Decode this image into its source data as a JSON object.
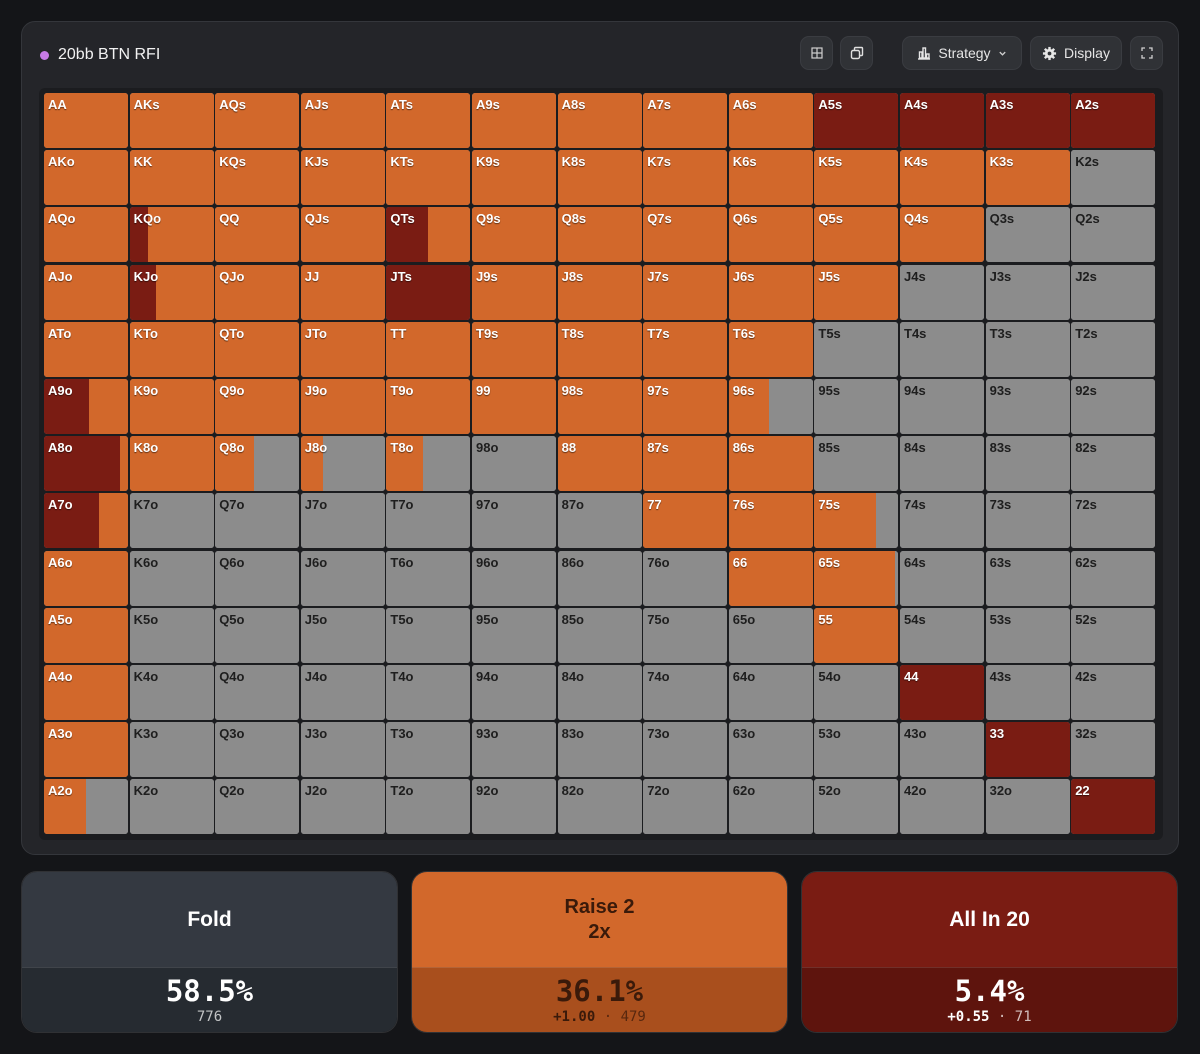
{
  "header": {
    "title": "20bb BTN RFI",
    "strategy_label": "Strategy",
    "display_label": "Display",
    "dot_color": "#c77be6"
  },
  "colors": {
    "fold": "#8c8c8c",
    "raise": "#d2682b",
    "allin": "#7a1c13"
  },
  "hands": [
    [
      "AA",
      "AKs",
      "AQs",
      "AJs",
      "ATs",
      "A9s",
      "A8s",
      "A7s",
      "A6s",
      "A5s",
      "A4s",
      "A3s",
      "A2s"
    ],
    [
      "AKo",
      "KK",
      "KQs",
      "KJs",
      "KTs",
      "K9s",
      "K8s",
      "K7s",
      "K6s",
      "K5s",
      "K4s",
      "K3s",
      "K2s"
    ],
    [
      "AQo",
      "KQo",
      "QQ",
      "QJs",
      "QTs",
      "Q9s",
      "Q8s",
      "Q7s",
      "Q6s",
      "Q5s",
      "Q4s",
      "Q3s",
      "Q2s"
    ],
    [
      "AJo",
      "KJo",
      "QJo",
      "JJ",
      "JTs",
      "J9s",
      "J8s",
      "J7s",
      "J6s",
      "J5s",
      "J4s",
      "J3s",
      "J2s"
    ],
    [
      "ATo",
      "KTo",
      "QTo",
      "JTo",
      "TT",
      "T9s",
      "T8s",
      "T7s",
      "T6s",
      "T5s",
      "T4s",
      "T3s",
      "T2s"
    ],
    [
      "A9o",
      "K9o",
      "Q9o",
      "J9o",
      "T9o",
      "99",
      "98s",
      "97s",
      "96s",
      "95s",
      "94s",
      "93s",
      "92s"
    ],
    [
      "A8o",
      "K8o",
      "Q8o",
      "J8o",
      "T8o",
      "98o",
      "88",
      "87s",
      "86s",
      "85s",
      "84s",
      "83s",
      "82s"
    ],
    [
      "A7o",
      "K7o",
      "Q7o",
      "J7o",
      "T7o",
      "97o",
      "87o",
      "77",
      "76s",
      "75s",
      "74s",
      "73s",
      "72s"
    ],
    [
      "A6o",
      "K6o",
      "Q6o",
      "J6o",
      "T6o",
      "96o",
      "86o",
      "76o",
      "66",
      "65s",
      "64s",
      "63s",
      "62s"
    ],
    [
      "A5o",
      "K5o",
      "Q5o",
      "J5o",
      "T5o",
      "95o",
      "85o",
      "75o",
      "65o",
      "55",
      "54s",
      "53s",
      "52s"
    ],
    [
      "A4o",
      "K4o",
      "Q4o",
      "J4o",
      "T4o",
      "94o",
      "84o",
      "74o",
      "64o",
      "54o",
      "44",
      "43s",
      "42s"
    ],
    [
      "A3o",
      "K3o",
      "Q3o",
      "J3o",
      "T3o",
      "93o",
      "83o",
      "73o",
      "63o",
      "53o",
      "43o",
      "33",
      "32s"
    ],
    [
      "A2o",
      "K2o",
      "Q2o",
      "J2o",
      "T2o",
      "92o",
      "82o",
      "72o",
      "62o",
      "52o",
      "42o",
      "32o",
      "22"
    ]
  ],
  "frequencies": {
    "AA": [
      0,
      1,
      0
    ],
    "AKs": [
      0,
      1,
      0
    ],
    "AQs": [
      0,
      1,
      0
    ],
    "AJs": [
      0,
      1,
      0
    ],
    "ATs": [
      0,
      1,
      0
    ],
    "A9s": [
      0,
      1,
      0
    ],
    "A8s": [
      0,
      1,
      0
    ],
    "A7s": [
      0,
      1,
      0
    ],
    "A6s": [
      0,
      1,
      0
    ],
    "A5s": [
      0,
      0,
      1
    ],
    "A4s": [
      0,
      0,
      1
    ],
    "A3s": [
      0,
      0,
      1
    ],
    "A2s": [
      0,
      0,
      1
    ],
    "AKo": [
      0,
      1,
      0
    ],
    "KK": [
      0,
      1,
      0
    ],
    "KQs": [
      0,
      1,
      0
    ],
    "KJs": [
      0,
      1,
      0
    ],
    "KTs": [
      0,
      1,
      0
    ],
    "K9s": [
      0,
      1,
      0
    ],
    "K8s": [
      0,
      1,
      0
    ],
    "K7s": [
      0,
      1,
      0
    ],
    "K6s": [
      0,
      1,
      0
    ],
    "K5s": [
      0,
      1,
      0
    ],
    "K4s": [
      0,
      1,
      0
    ],
    "K3s": [
      0,
      1,
      0
    ],
    "K2s": [
      1,
      0,
      0
    ],
    "AQo": [
      0,
      1,
      0
    ],
    "KQo": [
      0,
      0.78,
      0.22
    ],
    "QQ": [
      0,
      1,
      0
    ],
    "QJs": [
      0,
      1,
      0
    ],
    "QTs": [
      0,
      0.5,
      0.5
    ],
    "Q9s": [
      0,
      1,
      0
    ],
    "Q8s": [
      0,
      1,
      0
    ],
    "Q7s": [
      0,
      1,
      0
    ],
    "Q6s": [
      0,
      1,
      0
    ],
    "Q5s": [
      0,
      1,
      0
    ],
    "Q4s": [
      0,
      1,
      0
    ],
    "Q3s": [
      1,
      0,
      0
    ],
    "Q2s": [
      1,
      0,
      0
    ],
    "AJo": [
      0,
      1,
      0
    ],
    "KJo": [
      0,
      0.68,
      0.32
    ],
    "QJo": [
      0,
      1,
      0
    ],
    "JJ": [
      0,
      1,
      0
    ],
    "JTs": [
      0,
      0,
      1
    ],
    "J9s": [
      0,
      1,
      0
    ],
    "J8s": [
      0,
      1,
      0
    ],
    "J7s": [
      0,
      1,
      0
    ],
    "J6s": [
      0,
      1,
      0
    ],
    "J5s": [
      0,
      1,
      0
    ],
    "J4s": [
      1,
      0,
      0
    ],
    "J3s": [
      1,
      0,
      0
    ],
    "J2s": [
      1,
      0,
      0
    ],
    "ATo": [
      0,
      1,
      0
    ],
    "KTo": [
      0,
      1,
      0
    ],
    "QTo": [
      0,
      1,
      0
    ],
    "JTo": [
      0,
      1,
      0
    ],
    "TT": [
      0,
      1,
      0
    ],
    "T9s": [
      0,
      1,
      0
    ],
    "T8s": [
      0,
      1,
      0
    ],
    "T7s": [
      0,
      1,
      0
    ],
    "T6s": [
      0,
      1,
      0
    ],
    "T5s": [
      1,
      0,
      0
    ],
    "T4s": [
      1,
      0,
      0
    ],
    "T3s": [
      1,
      0,
      0
    ],
    "T2s": [
      1,
      0,
      0
    ],
    "A9o": [
      0,
      0.47,
      0.53
    ],
    "K9o": [
      0,
      1,
      0
    ],
    "Q9o": [
      0,
      1,
      0
    ],
    "J9o": [
      0,
      1,
      0
    ],
    "T9o": [
      0,
      1,
      0
    ],
    "99": [
      0,
      1,
      0
    ],
    "98s": [
      0,
      1,
      0
    ],
    "97s": [
      0,
      1,
      0
    ],
    "96s": [
      0.52,
      0.48,
      0
    ],
    "95s": [
      1,
      0,
      0
    ],
    "94s": [
      1,
      0,
      0
    ],
    "93s": [
      1,
      0,
      0
    ],
    "92s": [
      1,
      0,
      0
    ],
    "A8o": [
      0,
      0.1,
      0.9
    ],
    "K8o": [
      0,
      1,
      0
    ],
    "Q8o": [
      0.54,
      0.46,
      0
    ],
    "J8o": [
      0.73,
      0.27,
      0
    ],
    "T8o": [
      0.57,
      0.43,
      0
    ],
    "98o": [
      1,
      0,
      0
    ],
    "88": [
      0,
      1,
      0
    ],
    "87s": [
      0,
      1,
      0
    ],
    "86s": [
      0,
      1,
      0
    ],
    "85s": [
      1,
      0,
      0
    ],
    "84s": [
      1,
      0,
      0
    ],
    "83s": [
      1,
      0,
      0
    ],
    "82s": [
      1,
      0,
      0
    ],
    "A7o": [
      0,
      0.35,
      0.65
    ],
    "K7o": [
      1,
      0,
      0
    ],
    "Q7o": [
      1,
      0,
      0
    ],
    "J7o": [
      1,
      0,
      0
    ],
    "T7o": [
      1,
      0,
      0
    ],
    "97o": [
      1,
      0,
      0
    ],
    "87o": [
      1,
      0,
      0
    ],
    "77": [
      0,
      1,
      0
    ],
    "76s": [
      0,
      1,
      0
    ],
    "75s": [
      0.27,
      0.73,
      0
    ],
    "74s": [
      1,
      0,
      0
    ],
    "73s": [
      1,
      0,
      0
    ],
    "72s": [
      1,
      0,
      0
    ],
    "A6o": [
      0,
      1,
      0
    ],
    "K6o": [
      1,
      0,
      0
    ],
    "Q6o": [
      1,
      0,
      0
    ],
    "J6o": [
      1,
      0,
      0
    ],
    "T6o": [
      1,
      0,
      0
    ],
    "96o": [
      1,
      0,
      0
    ],
    "86o": [
      1,
      0,
      0
    ],
    "76o": [
      1,
      0,
      0
    ],
    "66": [
      0,
      1,
      0
    ],
    "65s": [
      0.04,
      0.96,
      0
    ],
    "64s": [
      1,
      0,
      0
    ],
    "63s": [
      1,
      0,
      0
    ],
    "62s": [
      1,
      0,
      0
    ],
    "A5o": [
      0,
      1,
      0
    ],
    "K5o": [
      1,
      0,
      0
    ],
    "Q5o": [
      1,
      0,
      0
    ],
    "J5o": [
      1,
      0,
      0
    ],
    "T5o": [
      1,
      0,
      0
    ],
    "95o": [
      1,
      0,
      0
    ],
    "85o": [
      1,
      0,
      0
    ],
    "75o": [
      1,
      0,
      0
    ],
    "65o": [
      1,
      0,
      0
    ],
    "55": [
      0,
      1,
      0
    ],
    "54s": [
      1,
      0,
      0
    ],
    "53s": [
      1,
      0,
      0
    ],
    "52s": [
      1,
      0,
      0
    ],
    "A4o": [
      0,
      1,
      0
    ],
    "K4o": [
      1,
      0,
      0
    ],
    "Q4o": [
      1,
      0,
      0
    ],
    "J4o": [
      1,
      0,
      0
    ],
    "T4o": [
      1,
      0,
      0
    ],
    "94o": [
      1,
      0,
      0
    ],
    "84o": [
      1,
      0,
      0
    ],
    "74o": [
      1,
      0,
      0
    ],
    "64o": [
      1,
      0,
      0
    ],
    "54o": [
      1,
      0,
      0
    ],
    "44": [
      0,
      0,
      1
    ],
    "43s": [
      1,
      0,
      0
    ],
    "42s": [
      1,
      0,
      0
    ],
    "A3o": [
      0,
      1,
      0
    ],
    "K3o": [
      1,
      0,
      0
    ],
    "Q3o": [
      1,
      0,
      0
    ],
    "J3o": [
      1,
      0,
      0
    ],
    "T3o": [
      1,
      0,
      0
    ],
    "93o": [
      1,
      0,
      0
    ],
    "83o": [
      1,
      0,
      0
    ],
    "73o": [
      1,
      0,
      0
    ],
    "63o": [
      1,
      0,
      0
    ],
    "53o": [
      1,
      0,
      0
    ],
    "43o": [
      1,
      0,
      0
    ],
    "33": [
      0,
      0,
      1
    ],
    "32s": [
      1,
      0,
      0
    ],
    "A2o": [
      0.5,
      0.5,
      0
    ],
    "K2o": [
      1,
      0,
      0
    ],
    "Q2o": [
      1,
      0,
      0
    ],
    "J2o": [
      1,
      0,
      0
    ],
    "T2o": [
      1,
      0,
      0
    ],
    "92o": [
      1,
      0,
      0
    ],
    "82o": [
      1,
      0,
      0
    ],
    "72o": [
      1,
      0,
      0
    ],
    "62o": [
      1,
      0,
      0
    ],
    "52o": [
      1,
      0,
      0
    ],
    "42o": [
      1,
      0,
      0
    ],
    "32o": [
      1,
      0,
      0
    ],
    "22": [
      0,
      0,
      1
    ]
  },
  "actions": [
    {
      "name_line1": "Fold",
      "name_line2": "",
      "percent": "58.5%",
      "ev": "",
      "combos": "776",
      "bg_top": "#343941",
      "bg_bottom": "#262b31"
    },
    {
      "name_line1": "Raise 2",
      "name_line2": "2x",
      "percent": "36.1%",
      "ev": "+1.00",
      "combos": "479",
      "bg_top": "#d2682b",
      "bg_bottom": "#a94f1d"
    },
    {
      "name_line1": "All In 20",
      "name_line2": "",
      "percent": "5.4%",
      "ev": "+0.55",
      "combos": "71",
      "bg_top": "#7a1c13",
      "bg_bottom": "#5e140d"
    }
  ]
}
